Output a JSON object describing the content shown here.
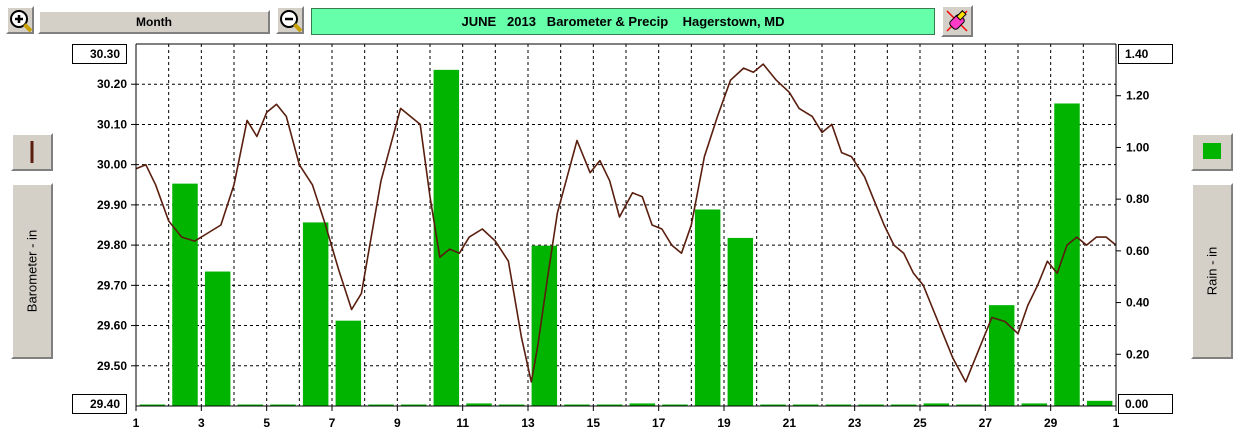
{
  "toolbar": {
    "zoom_in_icon": "zoom-in-magnifier",
    "month_label": "Month",
    "zoom_out_icon": "zoom-out-magnifier",
    "title": "JUNE   2013   Barometer & Precip    Hagerstown, MD",
    "tools_icon": "pencil-eraser"
  },
  "left_panel": {
    "axis_label": "Barometer - in",
    "swatch_color": "#5a1e0e"
  },
  "right_panel": {
    "axis_label": "Rain - in",
    "swatch_color": "#00b400"
  },
  "axis_boxes": {
    "left_top": "30.30",
    "left_bottom": "29.40",
    "right_top": "1.40",
    "right_bottom": "0.00"
  },
  "colors": {
    "bar": "#00b400",
    "pressure_line": "#5a1e0e",
    "grid": "#000000",
    "title_bg": "#66ffaa"
  },
  "chart_data": {
    "type": "bar+line",
    "x_range": [
      1,
      31
    ],
    "x_ticks": [
      "1",
      "3",
      "5",
      "7",
      "9",
      "11",
      "13",
      "15",
      "17",
      "19",
      "21",
      "23",
      "25",
      "27",
      "29",
      "1"
    ],
    "grid": true,
    "y_left": {
      "label": "Barometer - in",
      "range": [
        29.4,
        30.3
      ],
      "ticks": [
        "30.30",
        "30.20",
        "30.10",
        "30.00",
        "29.90",
        "29.80",
        "29.70",
        "29.60",
        "29.50",
        "29.40"
      ]
    },
    "y_right": {
      "label": "Rain - in",
      "range": [
        0.0,
        1.4
      ],
      "ticks": [
        "1.40",
        "1.20",
        "1.00",
        "0.80",
        "0.60",
        "0.40",
        "0.20",
        "0.00"
      ]
    },
    "precip": {
      "days": [
        1,
        2,
        3,
        4,
        5,
        6,
        7,
        8,
        9,
        10,
        11,
        12,
        13,
        14,
        15,
        16,
        17,
        18,
        19,
        20,
        21,
        22,
        23,
        24,
        25,
        26,
        27,
        28,
        29,
        30
      ],
      "values": [
        0.0,
        0.86,
        0.52,
        0.0,
        0.0,
        0.71,
        0.33,
        0.0,
        0.0,
        1.3,
        0.01,
        0.0,
        0.62,
        0.0,
        0.0,
        0.01,
        0.0,
        0.76,
        0.65,
        0.0,
        0.0,
        0.0,
        0.0,
        0.0,
        0.01,
        0.0,
        0.39,
        0.01,
        1.17,
        0.02
      ]
    },
    "pressure": {
      "x": [
        1.0,
        1.3,
        1.6,
        2.0,
        2.4,
        2.8,
        3.2,
        3.6,
        4.0,
        4.4,
        4.7,
        5.0,
        5.3,
        5.6,
        6.0,
        6.4,
        6.8,
        7.2,
        7.6,
        7.9,
        8.2,
        8.5,
        8.8,
        9.1,
        9.4,
        9.7,
        10.0,
        10.3,
        10.6,
        10.9,
        11.2,
        11.6,
        12.0,
        12.4,
        12.8,
        13.1,
        13.3,
        13.6,
        13.9,
        14.2,
        14.5,
        14.9,
        15.2,
        15.5,
        15.8,
        16.2,
        16.5,
        16.8,
        17.1,
        17.4,
        17.7,
        18.0,
        18.4,
        18.8,
        19.2,
        19.6,
        19.9,
        20.2,
        20.6,
        21.0,
        21.3,
        21.7,
        22.0,
        22.3,
        22.6,
        22.9,
        23.3,
        23.6,
        23.9,
        24.2,
        24.5,
        24.8,
        25.1,
        25.4,
        25.7,
        26.0,
        26.4,
        26.8,
        27.2,
        27.6,
        28.0,
        28.3,
        28.6,
        28.9,
        29.2,
        29.5,
        29.8,
        30.1,
        30.4,
        30.7,
        31.0
      ],
      "y": [
        29.99,
        30.0,
        29.95,
        29.86,
        29.82,
        29.81,
        29.83,
        29.85,
        29.95,
        30.11,
        30.07,
        30.13,
        30.15,
        30.12,
        30.0,
        29.95,
        29.85,
        29.74,
        29.64,
        29.68,
        29.82,
        29.96,
        30.05,
        30.14,
        30.12,
        30.1,
        29.92,
        29.77,
        29.79,
        29.78,
        29.82,
        29.84,
        29.81,
        29.76,
        29.57,
        29.46,
        29.55,
        29.72,
        29.88,
        29.97,
        30.06,
        29.98,
        30.01,
        29.96,
        29.87,
        29.93,
        29.92,
        29.85,
        29.84,
        29.8,
        29.78,
        29.85,
        30.02,
        30.12,
        30.21,
        30.24,
        30.23,
        30.25,
        30.21,
        30.18,
        30.14,
        30.12,
        30.08,
        30.1,
        30.03,
        30.02,
        29.97,
        29.91,
        29.85,
        29.8,
        29.78,
        29.73,
        29.7,
        29.64,
        29.58,
        29.52,
        29.46,
        29.54,
        29.62,
        29.61,
        29.58,
        29.65,
        29.7,
        29.76,
        29.73,
        29.8,
        29.82,
        29.8,
        29.82,
        29.82,
        29.8
      ]
    }
  }
}
